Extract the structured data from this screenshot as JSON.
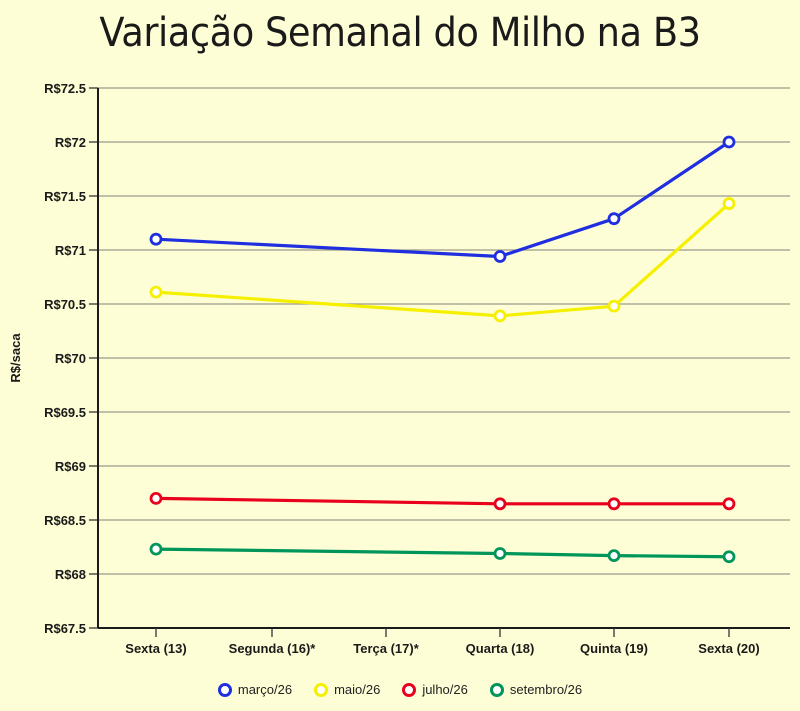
{
  "title": "Variação Semanal do Milho na B3",
  "chart_data": {
    "type": "line",
    "title": "Variação Semanal do Milho na B3",
    "xlabel": "",
    "ylabel": "R$/saca",
    "ylim": [
      67.5,
      72.5
    ],
    "yticks": [
      67.5,
      68,
      68.5,
      69,
      69.5,
      70,
      70.5,
      71,
      71.5,
      72,
      72.5
    ],
    "ytick_labels": [
      "R$67.5",
      "R$68",
      "R$68.5",
      "R$69",
      "R$69.5",
      "R$70",
      "R$70.5",
      "R$71",
      "R$71.5",
      "R$72",
      "R$72.5"
    ],
    "categories": [
      "Sexta (13)",
      "Segunda (16)*",
      "Terça (17)*",
      "Quarta (18)",
      "Quinta (19)",
      "Sexta (20)"
    ],
    "grid": true,
    "legend_position": "bottom",
    "series": [
      {
        "name": "março/26",
        "color": "#1f2fe0",
        "values": [
          71.1,
          null,
          null,
          70.94,
          71.29,
          72.0
        ]
      },
      {
        "name": "maio/26",
        "color": "#f5f000",
        "values": [
          70.61,
          null,
          null,
          70.39,
          70.48,
          71.43
        ]
      },
      {
        "name": "julho/26",
        "color": "#e8001c",
        "values": [
          68.7,
          null,
          null,
          68.65,
          68.65,
          68.65
        ]
      },
      {
        "name": "setembro/26",
        "color": "#00955a",
        "values": [
          68.23,
          null,
          null,
          68.19,
          68.17,
          68.16
        ]
      }
    ]
  }
}
